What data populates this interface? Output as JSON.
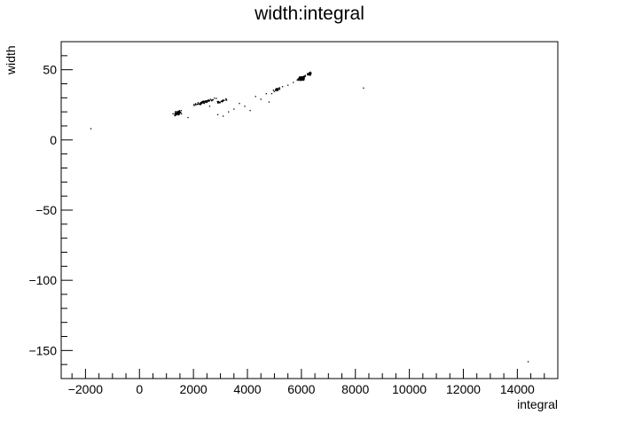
{
  "chart_data": {
    "type": "scatter",
    "title": "width:integral",
    "xlabel": "integral",
    "ylabel": "width",
    "xlim": [
      -2900,
      15500
    ],
    "ylim": [
      -170,
      70
    ],
    "x_ticks": [
      -2000,
      0,
      2000,
      4000,
      6000,
      8000,
      10000,
      12000,
      14000
    ],
    "x_tick_labels": [
      "−2000",
      "0",
      "2000",
      "4000",
      "6000",
      "8000",
      "10000",
      "12000",
      "14000"
    ],
    "y_ticks": [
      50,
      0,
      -50,
      -100,
      -150
    ],
    "y_tick_labels": [
      "50",
      "0",
      "−50",
      "−100",
      "−150"
    ],
    "grid": false,
    "legend": "none",
    "marker_color": "#000000",
    "clusters": [
      {
        "x_center": 1400,
        "y_center": 19,
        "x_spread": 250,
        "y_spread": 2.0,
        "count": 60
      },
      {
        "x_center": 2400,
        "y_center": 27,
        "x_spread": 500,
        "y_spread": 1.2,
        "count": 70
      },
      {
        "x_center": 3000,
        "y_center": 27.5,
        "x_spread": 300,
        "y_spread": 1.0,
        "count": 25
      },
      {
        "x_center": 5100,
        "y_center": 36,
        "x_spread": 180,
        "y_spread": 1.5,
        "count": 25
      },
      {
        "x_center": 6000,
        "y_center": 44,
        "x_spread": 180,
        "y_spread": 2.2,
        "count": 110
      },
      {
        "x_center": 6300,
        "y_center": 47,
        "x_spread": 100,
        "y_spread": 1.5,
        "count": 40
      }
    ],
    "points": [
      {
        "x": -1800,
        "y": 8
      },
      {
        "x": 8300,
        "y": 37
      },
      {
        "x": 14400,
        "y": -158
      },
      {
        "x": 3300,
        "y": 20
      },
      {
        "x": 3500,
        "y": 22
      },
      {
        "x": 3700,
        "y": 26
      },
      {
        "x": 3900,
        "y": 24
      },
      {
        "x": 4100,
        "y": 21
      },
      {
        "x": 4300,
        "y": 31
      },
      {
        "x": 4500,
        "y": 29
      },
      {
        "x": 4700,
        "y": 33
      },
      {
        "x": 4900,
        "y": 33
      },
      {
        "x": 5300,
        "y": 38
      },
      {
        "x": 5500,
        "y": 39
      },
      {
        "x": 5700,
        "y": 41
      },
      {
        "x": 3100,
        "y": 17
      },
      {
        "x": 2900,
        "y": 18
      },
      {
        "x": 1800,
        "y": 16
      },
      {
        "x": 2600,
        "y": 24
      },
      {
        "x": 4800,
        "y": 27
      }
    ]
  }
}
